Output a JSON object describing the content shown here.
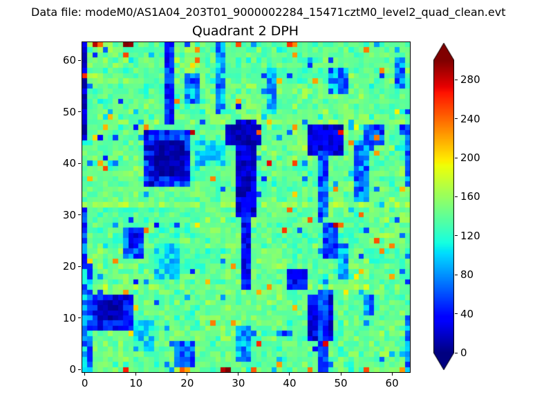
{
  "header": {
    "datafile_label": "Data file: modeM0/AS1A04_203T01_9000002284_15471cztM0_level2_quad_clean.evt"
  },
  "chart_data": {
    "type": "heatmap",
    "title": "Quadrant 2 DPH",
    "xlabel": "",
    "ylabel": "",
    "grid": {
      "nx": 64,
      "ny": 64
    },
    "x_range": [
      -0.5,
      63.5
    ],
    "y_range": [
      -0.5,
      63.5
    ],
    "x_ticks": [
      0,
      10,
      20,
      30,
      40,
      50,
      60
    ],
    "y_ticks": [
      0,
      10,
      20,
      30,
      40,
      50,
      60
    ],
    "colormap": "jet",
    "colorbar": {
      "vmin": 0,
      "vmax": 300,
      "ticks": [
        0,
        40,
        80,
        120,
        160,
        200,
        240,
        280
      ],
      "extend": "both"
    },
    "background": {
      "mean": 142,
      "std": 11,
      "block_size": 8,
      "block_amp": 7,
      "speckle_hot_p": 0.018,
      "speckle_cold_p": 0.03,
      "seed": 42
    },
    "row_bands": [
      {
        "y": 16,
        "add": 10
      },
      {
        "y": 32,
        "add": 18
      },
      {
        "y": 48,
        "add": 8
      }
    ],
    "patches": [
      {
        "x": [
          0,
          0
        ],
        "y": [
          45,
          63
        ],
        "v": 25,
        "j": 20
      },
      {
        "x": [
          0,
          1
        ],
        "y": [
          0,
          20
        ],
        "v": 80,
        "j": 40
      },
      {
        "x": [
          16,
          17
        ],
        "y": [
          48,
          63
        ],
        "v": 45,
        "j": 30
      },
      {
        "x": [
          20,
          22
        ],
        "y": [
          52,
          57
        ],
        "v": 75,
        "j": 35
      },
      {
        "x": [
          26,
          27
        ],
        "y": [
          50,
          63
        ],
        "v": 85,
        "j": 35
      },
      {
        "x": [
          36,
          37
        ],
        "y": [
          50,
          58
        ],
        "v": 90,
        "j": 30
      },
      {
        "x": [
          48,
          51
        ],
        "y": [
          54,
          58
        ],
        "v": 80,
        "j": 35
      },
      {
        "x": [
          61,
          62
        ],
        "y": [
          55,
          60
        ],
        "v": 70,
        "j": 30
      },
      {
        "x": [
          12,
          20
        ],
        "y": [
          36,
          46
        ],
        "v": 45,
        "j": 35
      },
      {
        "x": [
          14,
          19
        ],
        "y": [
          38,
          44
        ],
        "v": 12,
        "j": 10
      },
      {
        "x": [
          30,
          33
        ],
        "y": [
          30,
          48
        ],
        "v": 25,
        "j": 20
      },
      {
        "x": [
          28,
          34
        ],
        "y": [
          44,
          47
        ],
        "v": 15,
        "j": 12
      },
      {
        "x": [
          31,
          32
        ],
        "y": [
          16,
          30
        ],
        "v": 35,
        "j": 25
      },
      {
        "x": [
          22,
          27
        ],
        "y": [
          40,
          44
        ],
        "v": 105,
        "j": 30
      },
      {
        "x": [
          44,
          50
        ],
        "y": [
          42,
          47
        ],
        "v": 25,
        "j": 18
      },
      {
        "x": [
          46,
          47
        ],
        "y": [
          30,
          42
        ],
        "v": 60,
        "j": 30
      },
      {
        "x": [
          53,
          55
        ],
        "y": [
          33,
          44
        ],
        "v": 70,
        "j": 30
      },
      {
        "x": [
          55,
          58
        ],
        "y": [
          44,
          47
        ],
        "v": 55,
        "j": 30
      },
      {
        "x": [
          63,
          63
        ],
        "y": [
          36,
          47
        ],
        "v": 70,
        "j": 30
      },
      {
        "x": [
          0,
          0
        ],
        "y": [
          21,
          31
        ],
        "v": 60,
        "j": 30
      },
      {
        "x": [
          8,
          11
        ],
        "y": [
          22,
          27
        ],
        "v": 65,
        "j": 30
      },
      {
        "x": [
          9,
          10
        ],
        "y": [
          24,
          26
        ],
        "v": 30,
        "j": 15
      },
      {
        "x": [
          14,
          18
        ],
        "y": [
          18,
          24
        ],
        "v": 105,
        "j": 30
      },
      {
        "x": [
          40,
          43
        ],
        "y": [
          16,
          19
        ],
        "v": 35,
        "j": 20
      },
      {
        "x": [
          47,
          49
        ],
        "y": [
          22,
          28
        ],
        "v": 55,
        "j": 25
      },
      {
        "x": [
          50,
          51
        ],
        "y": [
          18,
          24
        ],
        "v": 80,
        "j": 30
      },
      {
        "x": [
          2,
          9
        ],
        "y": [
          8,
          14
        ],
        "v": 35,
        "j": 25
      },
      {
        "x": [
          3,
          7
        ],
        "y": [
          10,
          13
        ],
        "v": 12,
        "j": 10
      },
      {
        "x": [
          10,
          13
        ],
        "y": [
          4,
          9
        ],
        "v": 105,
        "j": 30
      },
      {
        "x": [
          18,
          21
        ],
        "y": [
          1,
          5
        ],
        "v": 70,
        "j": 30
      },
      {
        "x": [
          30,
          32
        ],
        "y": [
          2,
          8
        ],
        "v": 85,
        "j": 30
      },
      {
        "x": [
          44,
          48
        ],
        "y": [
          6,
          14
        ],
        "v": 30,
        "j": 20
      },
      {
        "x": [
          46,
          47
        ],
        "y": [
          0,
          15
        ],
        "v": 55,
        "j": 25
      },
      {
        "x": [
          55,
          56
        ],
        "y": [
          11,
          14
        ],
        "v": 75,
        "j": 30
      },
      {
        "x": [
          63,
          63
        ],
        "y": [
          0,
          10
        ],
        "v": 75,
        "j": 30
      }
    ],
    "spots": [
      [
        2,
        63,
        285
      ],
      [
        3,
        63,
        240
      ],
      [
        8,
        63,
        300
      ],
      [
        9,
        63,
        295
      ],
      [
        30,
        63,
        250
      ],
      [
        40,
        63,
        260
      ],
      [
        41,
        63,
        230
      ],
      [
        55,
        62,
        235
      ],
      [
        0,
        57,
        260
      ],
      [
        21,
        46,
        285
      ],
      [
        34,
        46,
        245
      ],
      [
        50,
        46,
        270
      ],
      [
        57,
        45,
        235
      ],
      [
        4,
        47,
        215
      ],
      [
        36,
        48,
        210
      ],
      [
        41,
        47,
        225
      ],
      [
        52,
        44,
        230
      ],
      [
        12,
        27,
        235
      ],
      [
        44,
        29,
        245
      ],
      [
        49,
        28,
        285
      ],
      [
        58,
        23,
        230
      ],
      [
        8,
        15,
        225
      ],
      [
        8,
        0,
        265
      ],
      [
        19,
        0,
        245
      ],
      [
        20,
        0,
        220
      ],
      [
        27,
        0,
        285
      ],
      [
        28,
        0,
        300
      ],
      [
        33,
        0,
        245
      ],
      [
        44,
        0,
        235
      ],
      [
        47,
        5,
        275
      ],
      [
        55,
        0,
        250
      ],
      [
        62,
        0,
        225
      ]
    ]
  }
}
